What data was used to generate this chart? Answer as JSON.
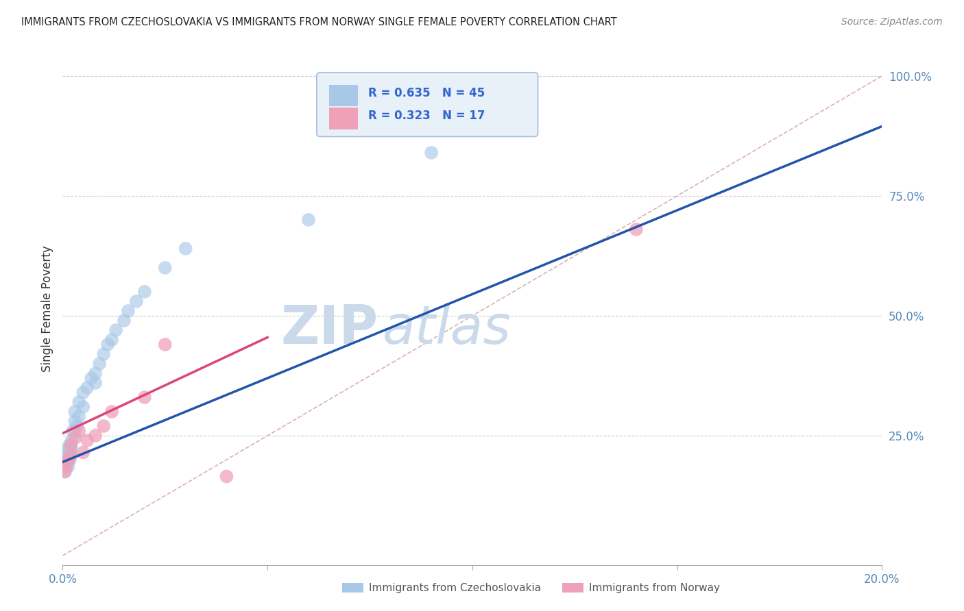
{
  "title": "IMMIGRANTS FROM CZECHOSLOVAKIA VS IMMIGRANTS FROM NORWAY SINGLE FEMALE POVERTY CORRELATION CHART",
  "source": "Source: ZipAtlas.com",
  "ylabel": "Single Female Poverty",
  "xlim": [
    0.0,
    0.2
  ],
  "ylim": [
    -0.02,
    1.05
  ],
  "czech_color": "#A8C8E8",
  "norway_color": "#F0A0B8",
  "czech_R": 0.635,
  "czech_N": 45,
  "norway_R": 0.323,
  "norway_N": 17,
  "trend_blue": "#2255AA",
  "trend_pink": "#DD4477",
  "ref_line_color": "#CCBBBB",
  "watermark_color": "#CADAEA",
  "legend_box_color": "#E8F0F8",
  "legend_border_color": "#AABBDD",
  "czech_x": [
    0.0005,
    0.0006,
    0.0007,
    0.0008,
    0.0009,
    0.001,
    0.001,
    0.001,
    0.0012,
    0.0013,
    0.0014,
    0.0015,
    0.0016,
    0.0017,
    0.0018,
    0.002,
    0.002,
    0.002,
    0.0022,
    0.0025,
    0.003,
    0.003,
    0.003,
    0.0035,
    0.004,
    0.004,
    0.005,
    0.005,
    0.006,
    0.007,
    0.008,
    0.008,
    0.009,
    0.01,
    0.011,
    0.012,
    0.013,
    0.015,
    0.016,
    0.018,
    0.02,
    0.025,
    0.03,
    0.06,
    0.09
  ],
  "czech_y": [
    0.195,
    0.175,
    0.19,
    0.2,
    0.185,
    0.22,
    0.2,
    0.215,
    0.195,
    0.185,
    0.205,
    0.21,
    0.23,
    0.215,
    0.2,
    0.225,
    0.215,
    0.23,
    0.24,
    0.26,
    0.26,
    0.28,
    0.3,
    0.27,
    0.29,
    0.32,
    0.31,
    0.34,
    0.35,
    0.37,
    0.38,
    0.36,
    0.4,
    0.42,
    0.44,
    0.45,
    0.47,
    0.49,
    0.51,
    0.53,
    0.55,
    0.6,
    0.64,
    0.7,
    0.84
  ],
  "norway_x": [
    0.0005,
    0.0008,
    0.001,
    0.0015,
    0.002,
    0.002,
    0.003,
    0.004,
    0.005,
    0.006,
    0.008,
    0.01,
    0.012,
    0.02,
    0.025,
    0.04,
    0.14
  ],
  "norway_y": [
    0.175,
    0.185,
    0.195,
    0.2,
    0.21,
    0.23,
    0.245,
    0.26,
    0.215,
    0.24,
    0.25,
    0.27,
    0.3,
    0.33,
    0.44,
    0.165,
    0.68
  ],
  "blue_trend_x0": 0.0,
  "blue_trend_y0": 0.195,
  "blue_trend_x1": 0.2,
  "blue_trend_y1": 0.895,
  "pink_trend_x0": 0.0,
  "pink_trend_y0": 0.255,
  "pink_trend_x1": 0.05,
  "pink_trend_y1": 0.455
}
